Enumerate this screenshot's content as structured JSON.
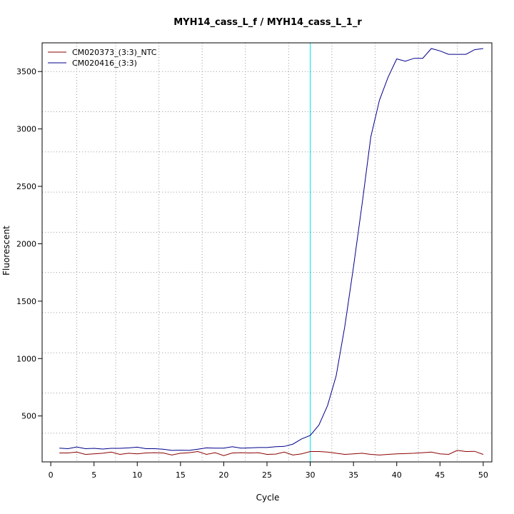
{
  "chart_data": {
    "type": "line",
    "title": "MYH14_cass_L_f / MYH14_cass_L_1_r",
    "xlabel": "Cycle",
    "ylabel": "Fluorescent",
    "xlim": [
      -1,
      51
    ],
    "ylim": [
      100,
      3750
    ],
    "x_ticks": [
      0,
      5,
      10,
      15,
      20,
      25,
      30,
      35,
      40,
      45,
      50
    ],
    "y_ticks": [
      500,
      1000,
      1500,
      2000,
      2500,
      3000,
      3500
    ],
    "x_grid": [
      3,
      7.5,
      12.5,
      17.5,
      22.5,
      27.5,
      32.5,
      37.5,
      42.5,
      47
    ],
    "y_grid": [
      350,
      700,
      1050,
      1400,
      1750,
      2100,
      2450,
      2800,
      3150,
      3500
    ],
    "grid": true,
    "legend_position": "top-left",
    "threshold_line": {
      "x": 30,
      "color": "#00e5ee"
    },
    "x": [
      1,
      2,
      3,
      4,
      5,
      6,
      7,
      8,
      9,
      10,
      11,
      12,
      13,
      14,
      15,
      16,
      17,
      18,
      19,
      20,
      21,
      22,
      23,
      24,
      25,
      26,
      27,
      28,
      29,
      30,
      31,
      32,
      33,
      34,
      35,
      36,
      37,
      38,
      39,
      40,
      41,
      42,
      43,
      44,
      45,
      46,
      47,
      48,
      49,
      50
    ],
    "series": [
      {
        "name": "CM020373_(3:3)_NTC",
        "color": "#8b0000",
        "values": [
          178,
          178,
          185,
          165,
          170,
          175,
          185,
          165,
          175,
          170,
          178,
          180,
          178,
          160,
          175,
          180,
          190,
          165,
          180,
          155,
          178,
          180,
          178,
          180,
          165,
          168,
          185,
          160,
          170,
          190,
          190,
          185,
          175,
          165,
          170,
          175,
          165,
          160,
          165,
          170,
          172,
          175,
          180,
          185,
          170,
          165,
          200,
          190,
          192,
          165
        ]
      },
      {
        "name": "CM020416_(3:3)",
        "color": "#00008b",
        "values": [
          220,
          215,
          230,
          215,
          218,
          212,
          218,
          218,
          222,
          228,
          215,
          215,
          210,
          200,
          202,
          200,
          210,
          222,
          220,
          220,
          232,
          220,
          222,
          225,
          225,
          232,
          235,
          255,
          300,
          330,
          420,
          590,
          850,
          1280,
          1800,
          2350,
          2930,
          3250,
          3450,
          3610,
          3590,
          3615,
          3615,
          3700,
          3680,
          3650,
          3650,
          3650,
          3690,
          3700
        ]
      }
    ]
  }
}
